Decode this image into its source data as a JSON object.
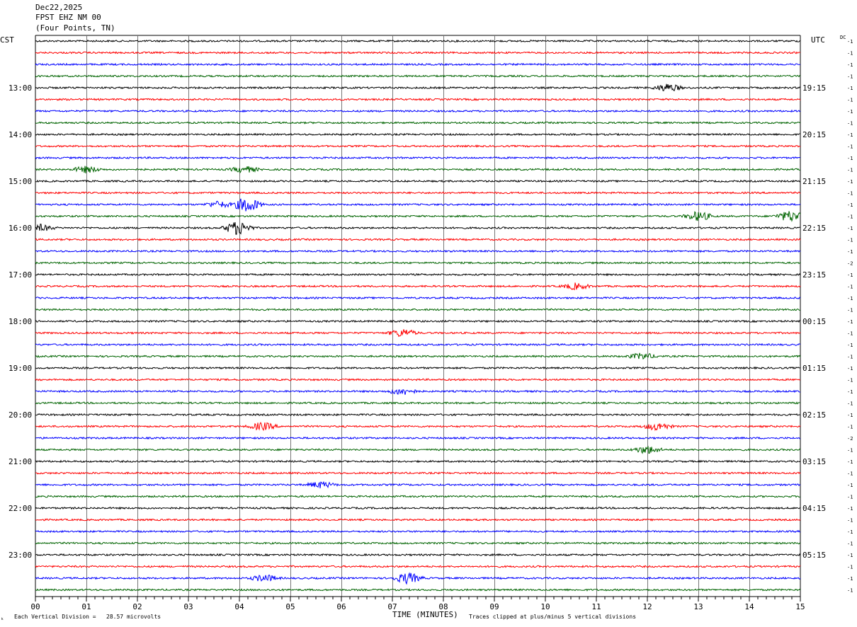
{
  "header": {
    "date": "Dec22,2025",
    "station": "FPST EHZ NM 00",
    "location": "(Four Points, TN)"
  },
  "left_tz": "CST",
  "right_tz": "UTC",
  "dc_label": "DC",
  "footer": {
    "scale_note": "Each Vertical Division =   28.57 microvolts",
    "clip_note": "Traces clipped at plus/minus 5 vertical divisions",
    "mark": "ₖ"
  },
  "chart_data": {
    "type": "helicorder",
    "xlabel": "TIME (MINUTES)",
    "x_ticks": [
      "00",
      "01",
      "02",
      "03",
      "04",
      "05",
      "06",
      "07",
      "08",
      "09",
      "10",
      "11",
      "12",
      "13",
      "14",
      "15"
    ],
    "xlim": [
      0,
      15
    ],
    "trace_colors": [
      "#000000",
      "#ff0000",
      "#0000ff",
      "#006400"
    ],
    "left_hour_labels": [
      {
        "trace": 4,
        "label": "13:00"
      },
      {
        "trace": 8,
        "label": "14:00"
      },
      {
        "trace": 12,
        "label": "15:00"
      },
      {
        "trace": 16,
        "label": "16:00"
      },
      {
        "trace": 20,
        "label": "17:00"
      },
      {
        "trace": 24,
        "label": "18:00"
      },
      {
        "trace": 28,
        "label": "19:00"
      },
      {
        "trace": 32,
        "label": "20:00"
      },
      {
        "trace": 36,
        "label": "21:00"
      },
      {
        "trace": 40,
        "label": "22:00"
      },
      {
        "trace": 44,
        "label": "23:00"
      }
    ],
    "right_hour_labels": [
      {
        "trace": 4,
        "label": "19:15"
      },
      {
        "trace": 8,
        "label": "20:15"
      },
      {
        "trace": 12,
        "label": "21:15"
      },
      {
        "trace": 16,
        "label": "22:15"
      },
      {
        "trace": 20,
        "label": "23:15"
      },
      {
        "trace": 24,
        "label": "00:15"
      },
      {
        "trace": 28,
        "label": "01:15"
      },
      {
        "trace": 32,
        "label": "02:15"
      },
      {
        "trace": 36,
        "label": "03:15"
      },
      {
        "trace": 40,
        "label": "04:15"
      },
      {
        "trace": 44,
        "label": "05:15"
      }
    ],
    "dc_offsets": [
      "-1",
      "-1",
      "-1",
      "-1",
      "-1",
      "-1",
      "-1",
      "-1",
      "-1",
      "-1",
      "-1",
      "-1",
      "-1",
      "-1",
      "-1",
      "-1",
      "-1",
      "-1",
      "-1",
      "-2",
      "-1",
      "-1",
      "-1",
      "-1",
      "-1",
      "-1",
      "-1",
      "-1",
      "-1",
      "-1",
      "-1",
      "-1",
      "-1",
      "-1",
      "-2",
      "-1",
      "-1",
      "-1",
      "-1",
      "-1",
      "-1",
      "-1",
      "-1",
      "-1",
      "-1",
      "-1",
      "-1",
      "-1"
    ],
    "events": [
      {
        "trace": 4,
        "minute": 12.4,
        "amp": 2.5
      },
      {
        "trace": 11,
        "minute": 1.0,
        "amp": 2.0
      },
      {
        "trace": 11,
        "minute": 4.1,
        "amp": 2.0
      },
      {
        "trace": 14,
        "minute": 4.15,
        "amp": 5.0
      },
      {
        "trace": 14,
        "minute": 3.6,
        "amp": 2.0
      },
      {
        "trace": 15,
        "minute": 13.0,
        "amp": 3.0
      },
      {
        "trace": 15,
        "minute": 14.8,
        "amp": 3.5
      },
      {
        "trace": 16,
        "minute": 3.97,
        "amp": 4.5
      },
      {
        "trace": 16,
        "minute": 0.1,
        "amp": 2.0
      },
      {
        "trace": 21,
        "minute": 10.6,
        "amp": 2.0
      },
      {
        "trace": 25,
        "minute": 7.2,
        "amp": 2.5
      },
      {
        "trace": 27,
        "minute": 11.9,
        "amp": 2.0
      },
      {
        "trace": 30,
        "minute": 7.2,
        "amp": 2.2
      },
      {
        "trace": 33,
        "minute": 4.45,
        "amp": 2.5
      },
      {
        "trace": 33,
        "minute": 12.2,
        "amp": 2.5
      },
      {
        "trace": 35,
        "minute": 12.0,
        "amp": 2.5
      },
      {
        "trace": 38,
        "minute": 5.6,
        "amp": 2.0
      },
      {
        "trace": 46,
        "minute": 4.5,
        "amp": 2.2
      },
      {
        "trace": 46,
        "minute": 7.3,
        "amp": 3.5
      }
    ]
  }
}
